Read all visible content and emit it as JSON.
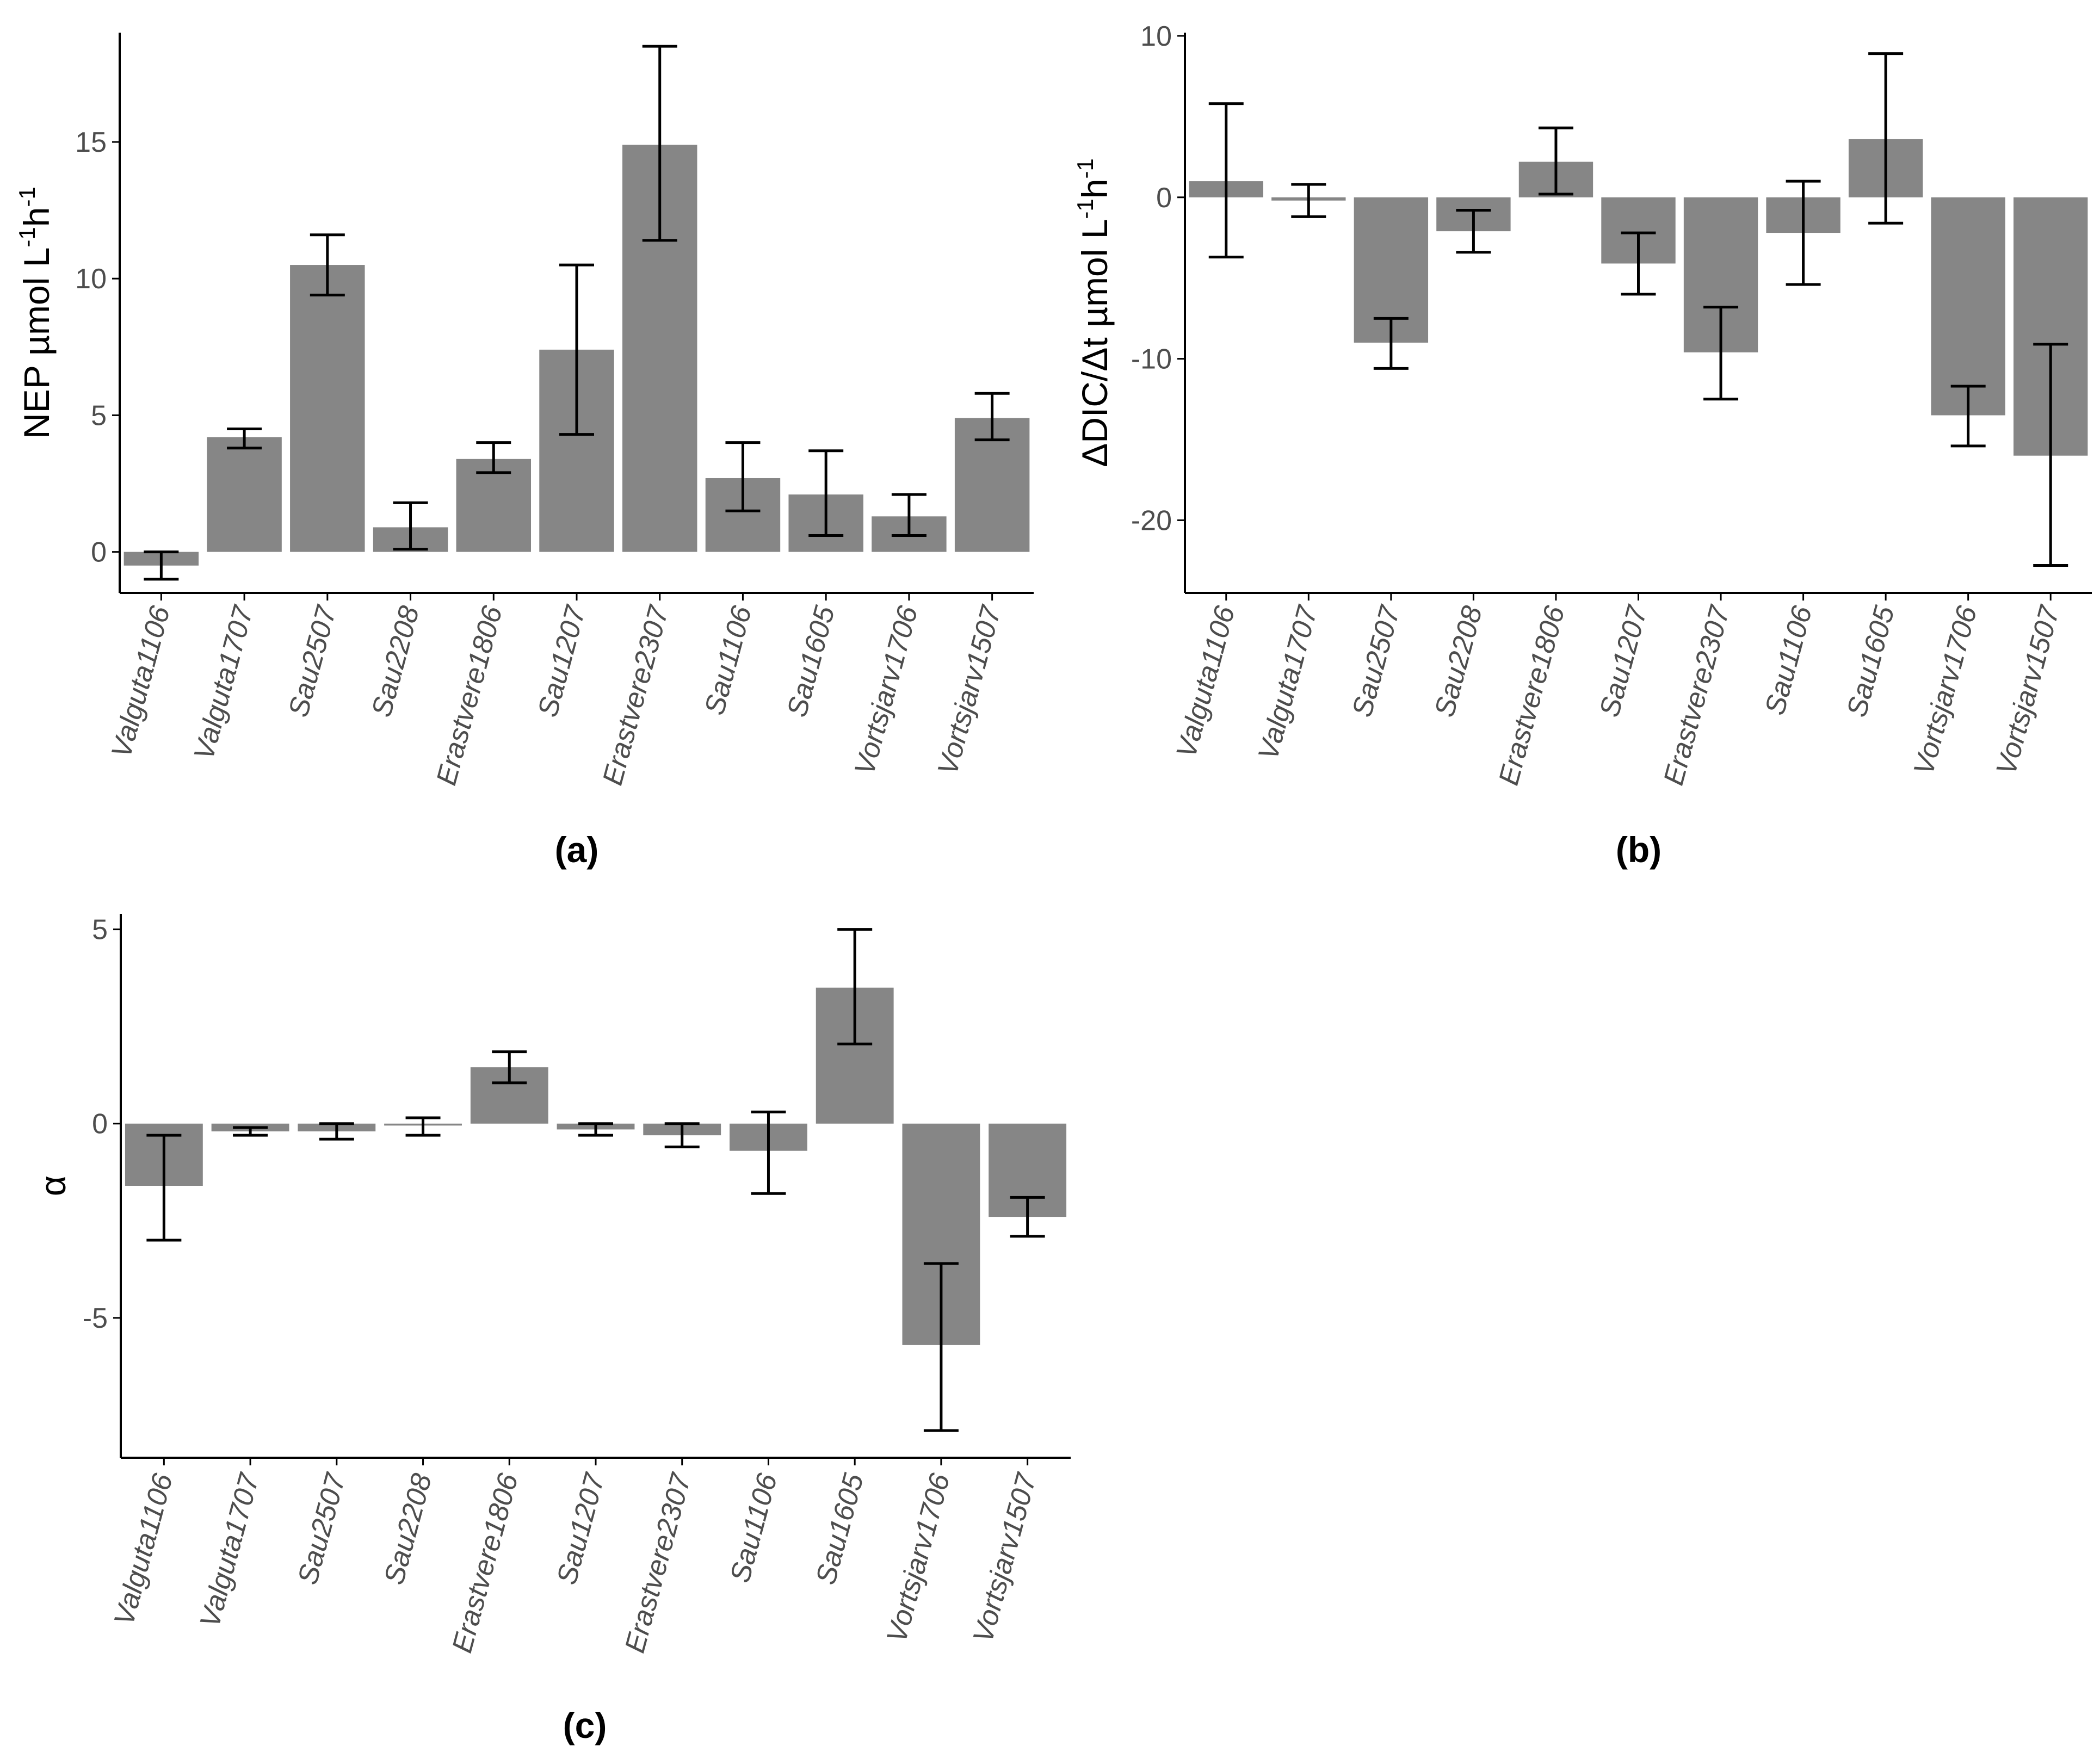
{
  "chart_data": [
    {
      "type": "bar",
      "panel": "(a)",
      "title": "",
      "xlabel": "",
      "ylabel": "NEP µmol L⁻¹h⁻¹",
      "ylabel_parts": {
        "main": "NEP µmol L",
        "sup1": "-1",
        "mid": "h",
        "sup2": "-1"
      },
      "ylim": [
        -1.5,
        19.0
      ],
      "yticks": [
        0,
        5,
        10,
        15
      ],
      "categories": [
        "Valguta1106",
        "Valguta1707",
        "Sau2507",
        "Sau2208",
        "Erastvere1806",
        "Sau1207",
        "Erastvere2307",
        "Sau1106",
        "Sau1605",
        "Vortsjarv1706",
        "Vortsjarv1507"
      ],
      "values": [
        -0.5,
        4.2,
        10.5,
        0.9,
        3.4,
        7.4,
        14.9,
        2.7,
        2.1,
        1.3,
        4.9
      ],
      "error_low": [
        -1.0,
        3.8,
        9.4,
        0.1,
        2.9,
        4.3,
        11.4,
        1.5,
        0.6,
        0.6,
        4.1
      ],
      "error_high": [
        0.0,
        4.5,
        11.6,
        1.8,
        4.0,
        10.5,
        18.5,
        4.0,
        3.7,
        2.1,
        5.8
      ]
    },
    {
      "type": "bar",
      "panel": "(b)",
      "title": "",
      "xlabel": "",
      "ylabel": "ΔDIC/Δt µmol L⁻¹h⁻¹",
      "ylabel_parts": {
        "main": "ΔDIC/Δt µmol L",
        "sup1": "-1",
        "mid": "h",
        "sup2": "-1"
      },
      "ylim": [
        -24.5,
        10.2
      ],
      "yticks": [
        10,
        0,
        -10,
        -20
      ],
      "categories": [
        "Valguta1106",
        "Valguta1707",
        "Sau2507",
        "Sau2208",
        "Erastvere1806",
        "Sau1207",
        "Erastvere2307",
        "Sau1106",
        "Sau1605",
        "Vortsjarv1706",
        "Vortsjarv1507"
      ],
      "values": [
        1.0,
        -0.2,
        -9.0,
        -2.1,
        2.2,
        -4.1,
        -9.6,
        -2.2,
        3.6,
        -13.5,
        -16.0
      ],
      "error_low": [
        -3.7,
        -1.2,
        -10.6,
        -3.4,
        0.2,
        -6.0,
        -12.5,
        -5.4,
        -1.6,
        -15.4,
        -22.8
      ],
      "error_high": [
        5.8,
        0.8,
        -7.5,
        -0.8,
        4.3,
        -2.2,
        -6.8,
        1.0,
        8.9,
        -11.7,
        -9.1
      ]
    },
    {
      "type": "bar",
      "panel": "(c)",
      "title": "",
      "xlabel": "",
      "ylabel": "α",
      "ylim": [
        -8.6,
        5.4
      ],
      "yticks": [
        5,
        0,
        -5
      ],
      "categories": [
        "Valguta1106",
        "Valguta1707",
        "Sau2507",
        "Sau2208",
        "Erastvere1806",
        "Sau1207",
        "Erastvere2307",
        "Sau1106",
        "Sau1605",
        "Vortsjarv1706",
        "Vortsjarv1507"
      ],
      "values": [
        -1.6,
        -0.2,
        -0.2,
        -0.05,
        1.45,
        -0.15,
        -0.3,
        -0.7,
        3.5,
        -5.7,
        -2.4
      ],
      "error_low": [
        -3.0,
        -0.3,
        -0.4,
        -0.3,
        1.05,
        -0.3,
        -0.6,
        -1.8,
        2.05,
        -7.9,
        -2.9
      ],
      "error_high": [
        -0.3,
        -0.1,
        0.0,
        0.15,
        1.85,
        0.0,
        0.0,
        0.3,
        5.0,
        -3.6,
        -1.9
      ]
    }
  ],
  "colors": {
    "bar": "#868686",
    "axis": "#000000",
    "tick_text": "#4d4d4d",
    "error": "#000000",
    "background": "#ffffff"
  }
}
